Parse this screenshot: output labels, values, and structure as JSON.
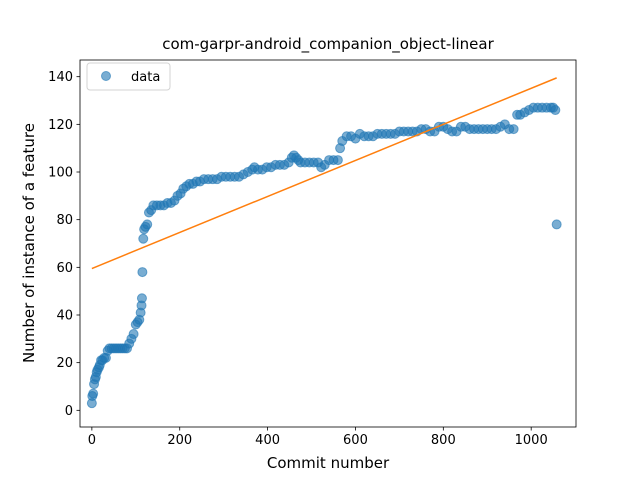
{
  "chart_data": {
    "type": "scatter",
    "title": "com-garpr-android_companion_object-linear",
    "xlabel": "Commit number",
    "ylabel": "Number of instance of a feature",
    "xlim": [
      -27,
      1102
    ],
    "ylim": [
      -7,
      147
    ],
    "xticks": [
      0,
      200,
      400,
      600,
      800,
      1000
    ],
    "yticks": [
      0,
      20,
      40,
      60,
      80,
      100,
      120,
      140
    ],
    "grid": false,
    "legend": {
      "placement": "top-left",
      "entries": [
        "data"
      ]
    },
    "colors": {
      "data": "#1f77b4",
      "fit": "#ff7f0e"
    },
    "series": [
      {
        "name": "data",
        "kind": "scatter",
        "points": [
          [
            0,
            3
          ],
          [
            1,
            6
          ],
          [
            3,
            7
          ],
          [
            5,
            11
          ],
          [
            7,
            13
          ],
          [
            9,
            14
          ],
          [
            11,
            16
          ],
          [
            13,
            17
          ],
          [
            16,
            18
          ],
          [
            18,
            19
          ],
          [
            21,
            21
          ],
          [
            24,
            21
          ],
          [
            28,
            22
          ],
          [
            32,
            22
          ],
          [
            36,
            25
          ],
          [
            40,
            26
          ],
          [
            45,
            26
          ],
          [
            50,
            26
          ],
          [
            55,
            26
          ],
          [
            60,
            26
          ],
          [
            65,
            26
          ],
          [
            70,
            26
          ],
          [
            75,
            26
          ],
          [
            80,
            26
          ],
          [
            85,
            28
          ],
          [
            90,
            30
          ],
          [
            95,
            32
          ],
          [
            100,
            36
          ],
          [
            104,
            37
          ],
          [
            108,
            38
          ],
          [
            111,
            41
          ],
          [
            113,
            44
          ],
          [
            114,
            47
          ],
          [
            115,
            58
          ],
          [
            117,
            72
          ],
          [
            119,
            76
          ],
          [
            122,
            77
          ],
          [
            126,
            78
          ],
          [
            130,
            83
          ],
          [
            135,
            84
          ],
          [
            140,
            86
          ],
          [
            148,
            86
          ],
          [
            156,
            86
          ],
          [
            164,
            86
          ],
          [
            172,
            87
          ],
          [
            180,
            87
          ],
          [
            188,
            88
          ],
          [
            195,
            90
          ],
          [
            202,
            91
          ],
          [
            208,
            93
          ],
          [
            215,
            94
          ],
          [
            222,
            95
          ],
          [
            230,
            95
          ],
          [
            238,
            96
          ],
          [
            246,
            96
          ],
          [
            255,
            97
          ],
          [
            265,
            97
          ],
          [
            275,
            97
          ],
          [
            285,
            97
          ],
          [
            295,
            98
          ],
          [
            305,
            98
          ],
          [
            315,
            98
          ],
          [
            325,
            98
          ],
          [
            335,
            98
          ],
          [
            345,
            99
          ],
          [
            355,
            100
          ],
          [
            365,
            101
          ],
          [
            370,
            102
          ],
          [
            378,
            101
          ],
          [
            388,
            101
          ],
          [
            398,
            102
          ],
          [
            408,
            102
          ],
          [
            418,
            103
          ],
          [
            428,
            103
          ],
          [
            438,
            103
          ],
          [
            448,
            104
          ],
          [
            455,
            106
          ],
          [
            460,
            107
          ],
          [
            465,
            106
          ],
          [
            470,
            105
          ],
          [
            475,
            104
          ],
          [
            485,
            104
          ],
          [
            495,
            104
          ],
          [
            505,
            104
          ],
          [
            515,
            104
          ],
          [
            522,
            102
          ],
          [
            530,
            103
          ],
          [
            540,
            105
          ],
          [
            550,
            105
          ],
          [
            560,
            105
          ],
          [
            565,
            110
          ],
          [
            570,
            113
          ],
          [
            580,
            115
          ],
          [
            590,
            115
          ],
          [
            600,
            114
          ],
          [
            610,
            116
          ],
          [
            620,
            115
          ],
          [
            630,
            115
          ],
          [
            640,
            115
          ],
          [
            650,
            116
          ],
          [
            660,
            116
          ],
          [
            670,
            116
          ],
          [
            680,
            116
          ],
          [
            690,
            116
          ],
          [
            700,
            117
          ],
          [
            710,
            117
          ],
          [
            720,
            117
          ],
          [
            730,
            117
          ],
          [
            740,
            117
          ],
          [
            750,
            118
          ],
          [
            760,
            118
          ],
          [
            770,
            117
          ],
          [
            780,
            117
          ],
          [
            790,
            119
          ],
          [
            800,
            119
          ],
          [
            810,
            118
          ],
          [
            820,
            117
          ],
          [
            830,
            117
          ],
          [
            840,
            119
          ],
          [
            850,
            119
          ],
          [
            860,
            118
          ],
          [
            870,
            118
          ],
          [
            880,
            118
          ],
          [
            890,
            118
          ],
          [
            900,
            118
          ],
          [
            910,
            118
          ],
          [
            920,
            118
          ],
          [
            930,
            119
          ],
          [
            940,
            120
          ],
          [
            950,
            118
          ],
          [
            960,
            118
          ],
          [
            968,
            124
          ],
          [
            975,
            124
          ],
          [
            985,
            125
          ],
          [
            995,
            126
          ],
          [
            1005,
            127
          ],
          [
            1015,
            127
          ],
          [
            1025,
            127
          ],
          [
            1035,
            127
          ],
          [
            1045,
            127
          ],
          [
            1050,
            127
          ],
          [
            1055,
            126
          ],
          [
            1058,
            78
          ]
        ]
      },
      {
        "name": "",
        "kind": "line",
        "points": [
          [
            0,
            59.5
          ],
          [
            1058,
            139.5
          ]
        ]
      }
    ]
  }
}
